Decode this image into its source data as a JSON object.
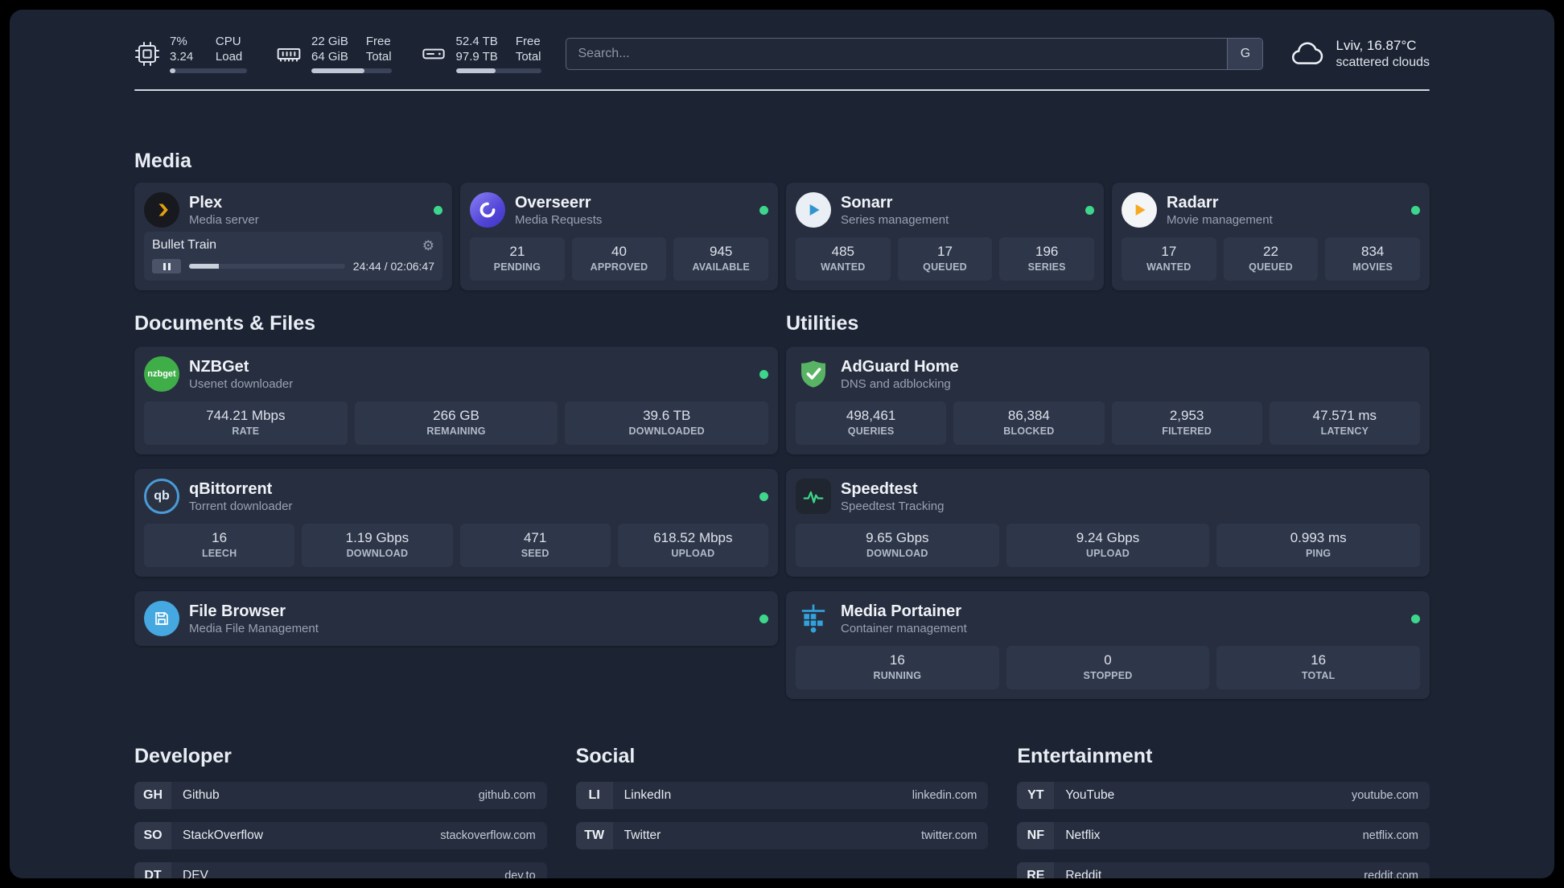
{
  "colors": {
    "status_online": "#3dd68c",
    "plex_amber": "#e5a00d",
    "progress_fill": "#c0c8d6"
  },
  "icons": {
    "gear": "⚙"
  },
  "topbar": {
    "resources": [
      {
        "id": "cpu",
        "values": [
          "7%",
          "3.24"
        ],
        "labels": [
          "CPU",
          "Load"
        ],
        "progress": 7
      },
      {
        "id": "memory",
        "values": [
          "22 GiB",
          "64 GiB"
        ],
        "labels": [
          "Free",
          "Total"
        ],
        "progress": 66
      },
      {
        "id": "disk",
        "values": [
          "52.4 TB",
          "97.9 TB"
        ],
        "labels": [
          "Free",
          "Total"
        ],
        "progress": 47
      }
    ],
    "search": {
      "placeholder": "Search...",
      "provider_label": "G"
    },
    "weather": {
      "location": "Lviv, 16.87°C",
      "condition": "scattered clouds"
    }
  },
  "sections": {
    "media": {
      "title": "Media",
      "cards": {
        "plex": {
          "name": "Plex",
          "desc": "Media server",
          "player": {
            "track": "Bullet Train",
            "time": "24:44 / 02:06:47",
            "progress": 19
          }
        },
        "overseerr": {
          "name": "Overseerr",
          "desc": "Media Requests",
          "stats": [
            {
              "value": "21",
              "label": "PENDING"
            },
            {
              "value": "40",
              "label": "APPROVED"
            },
            {
              "value": "945",
              "label": "AVAILABLE"
            }
          ]
        },
        "sonarr": {
          "name": "Sonarr",
          "desc": "Series management",
          "stats": [
            {
              "value": "485",
              "label": "WANTED"
            },
            {
              "value": "17",
              "label": "QUEUED"
            },
            {
              "value": "196",
              "label": "SERIES"
            }
          ]
        },
        "radarr": {
          "name": "Radarr",
          "desc": "Movie management",
          "stats": [
            {
              "value": "17",
              "label": "WANTED"
            },
            {
              "value": "22",
              "label": "QUEUED"
            },
            {
              "value": "834",
              "label": "MOVIES"
            }
          ]
        }
      }
    },
    "documents": {
      "title": "Documents & Files",
      "cards": {
        "nzbget": {
          "name": "NZBGet",
          "desc": "Usenet downloader",
          "icon_text": "nzbget",
          "stats": [
            {
              "value": "744.21 Mbps",
              "label": "RATE"
            },
            {
              "value": "266 GB",
              "label": "REMAINING"
            },
            {
              "value": "39.6 TB",
              "label": "DOWNLOADED"
            }
          ]
        },
        "qbittorrent": {
          "name": "qBittorrent",
          "desc": "Torrent downloader",
          "icon_text": "qb",
          "stats": [
            {
              "value": "16",
              "label": "LEECH"
            },
            {
              "value": "1.19 Gbps",
              "label": "DOWNLOAD"
            },
            {
              "value": "471",
              "label": "SEED"
            },
            {
              "value": "618.52 Mbps",
              "label": "UPLOAD"
            }
          ]
        },
        "filebrowser": {
          "name": "File Browser",
          "desc": "Media File Management"
        }
      }
    },
    "utilities": {
      "title": "Utilities",
      "cards": {
        "adguard": {
          "name": "AdGuard Home",
          "desc": "DNS and adblocking",
          "stats": [
            {
              "value": "498,461",
              "label": "QUERIES"
            },
            {
              "value": "86,384",
              "label": "BLOCKED"
            },
            {
              "value": "2,953",
              "label": "FILTERED"
            },
            {
              "value": "47.571 ms",
              "label": "LATENCY"
            }
          ]
        },
        "speedtest": {
          "name": "Speedtest",
          "desc": "Speedtest Tracking",
          "stats": [
            {
              "value": "9.65 Gbps",
              "label": "DOWNLOAD"
            },
            {
              "value": "9.24 Gbps",
              "label": "UPLOAD"
            },
            {
              "value": "0.993 ms",
              "label": "PING"
            }
          ]
        },
        "portainer": {
          "name": "Media Portainer",
          "desc": "Container management",
          "stats": [
            {
              "value": "16",
              "label": "RUNNING"
            },
            {
              "value": "0",
              "label": "STOPPED"
            },
            {
              "value": "16",
              "label": "TOTAL"
            }
          ]
        }
      }
    }
  },
  "bookmarks": {
    "developer": {
      "title": "Developer",
      "items": [
        {
          "abbr": "GH",
          "name": "Github",
          "url": "github.com"
        },
        {
          "abbr": "SO",
          "name": "StackOverflow",
          "url": "stackoverflow.com"
        },
        {
          "abbr": "DT",
          "name": "DEV",
          "url": "dev.to"
        }
      ]
    },
    "social": {
      "title": "Social",
      "items": [
        {
          "abbr": "LI",
          "name": "LinkedIn",
          "url": "linkedin.com"
        },
        {
          "abbr": "TW",
          "name": "Twitter",
          "url": "twitter.com"
        }
      ]
    },
    "entertainment": {
      "title": "Entertainment",
      "items": [
        {
          "abbr": "YT",
          "name": "YouTube",
          "url": "youtube.com"
        },
        {
          "abbr": "NF",
          "name": "Netflix",
          "url": "netflix.com"
        },
        {
          "abbr": "RE",
          "name": "Reddit",
          "url": "reddit.com"
        }
      ]
    }
  }
}
